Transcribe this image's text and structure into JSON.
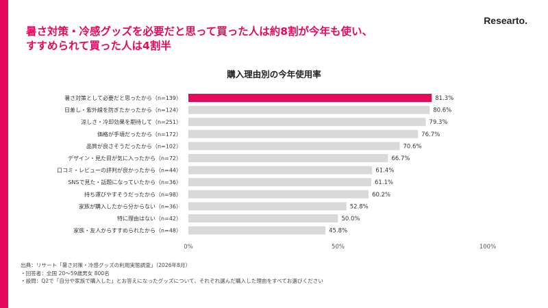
{
  "brand": {
    "logo": "Researto.",
    "accent_color": "#e60a5c"
  },
  "headline": {
    "line1": "暑さ対策・冷感グッズを必要だと思って買った人は約8割が今年も使い、",
    "line2": "すすめられて買った人は4割半"
  },
  "chart_data": {
    "type": "bar",
    "orientation": "horizontal",
    "title": "購入理由別の今年使用率",
    "categories": [
      "暑さ対策として必要だと思ったから（n=139）",
      "日差し・紫外線を防ぎたかったから（n=124）",
      "涼しさ・冷却効果を期待して（n=251）",
      "価格が手頃だったから（n=172）",
      "品質が良さそうだったから（n=102）",
      "デザイン・見た目が気に入ったから（n=72）",
      "口コミ・レビューの評判が良かったから（n=44）",
      "SNSで見た・話題になっていたから（n=36）",
      "持ち運びやすそうだったから（n=98）",
      "家族が購入したから分からない（n=36）",
      "特に理由はない（n=42）",
      "家族・友人からすすめられたから（n=48）"
    ],
    "values": [
      81.3,
      80.6,
      79.3,
      76.7,
      70.6,
      66.7,
      61.4,
      61.1,
      60.2,
      52.8,
      50.0,
      45.8
    ],
    "value_labels": [
      "81.3%",
      "80.6%",
      "79.3%",
      "76.7%",
      "70.6%",
      "66.7%",
      "61.4%",
      "61.1%",
      "60.2%",
      "52.8%",
      "50.0%",
      "45.8%"
    ],
    "xlim": [
      0,
      100
    ],
    "xticks": [
      "0%",
      "50%",
      "100%"
    ],
    "highlight_index": 0,
    "highlight_color": "#e60a5c",
    "bar_color": "#d9d9d9",
    "grid": false
  },
  "footer": {
    "source": "出典：リサート「暑さ対策・冷感グッズの利用実態調査」（2026年8月）",
    "respondents": "・回答者：全国 20～59歳男女 800名",
    "question": "・設問：Q2で「自分や家族で購入した」とお答えになったグッズについて、それぞれ選んだ購入した理由をすべてお選びください"
  }
}
